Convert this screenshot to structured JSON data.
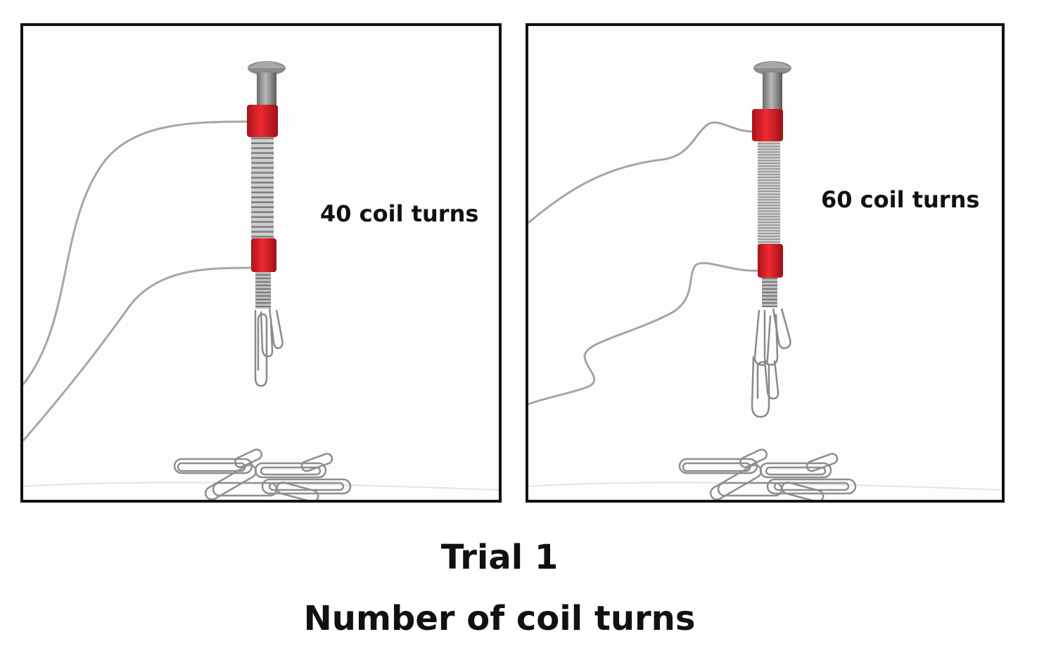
{
  "panels": [
    {
      "label": "40 coil turns"
    },
    {
      "label": "60 coil turns"
    }
  ],
  "caption": {
    "trial": "Trial 1",
    "subtitle": "Number of coil turns"
  },
  "colors": {
    "coil_clip": "#d61f26",
    "coil_wire": "#9a9a9a",
    "border": "#111111",
    "text": "#111111"
  }
}
